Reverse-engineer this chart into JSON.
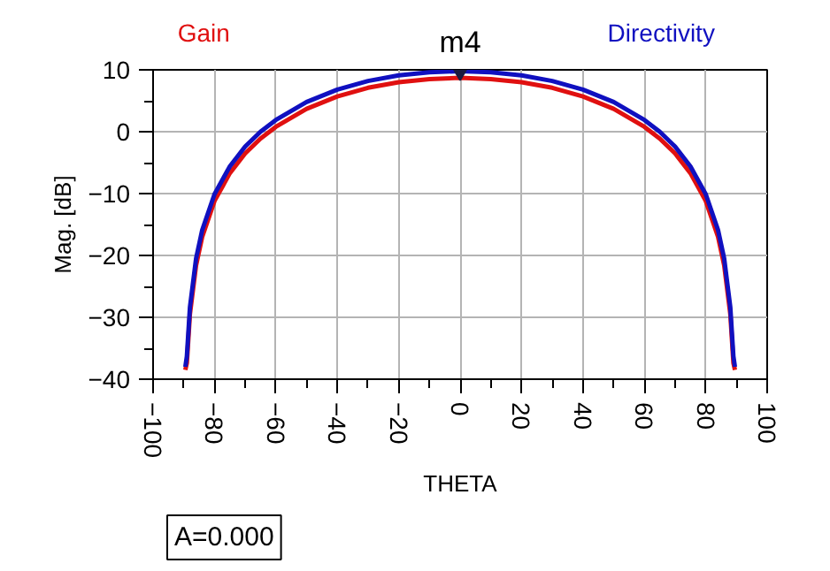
{
  "chart_data": {
    "type": "line",
    "xlabel": "THETA",
    "ylabel": "Mag. [dB]",
    "x": [
      -89.5,
      -89,
      -88,
      -86,
      -84,
      -80,
      -75,
      -70,
      -65,
      -60,
      -50,
      -40,
      -30,
      -20,
      -10,
      0,
      10,
      20,
      30,
      40,
      50,
      60,
      65,
      70,
      75,
      80,
      84,
      86,
      88,
      89,
      89.5
    ],
    "series": [
      {
        "name": "Gain",
        "color": "#e01010",
        "values": [
          -38.5,
          -37.4,
          -29.5,
          -21.6,
          -17.0,
          -11.2,
          -6.7,
          -3.5,
          -1.1,
          0.8,
          3.7,
          5.7,
          7.1,
          8.0,
          8.5,
          8.7,
          8.5,
          8.0,
          7.1,
          5.7,
          3.7,
          0.8,
          -1.1,
          -3.5,
          -6.7,
          -11.2,
          -17.0,
          -21.6,
          -29.5,
          -37.4,
          -38.5
        ]
      },
      {
        "name": "Directivity",
        "color": "#1010c0",
        "values": [
          -38.0,
          -36.3,
          -28.4,
          -20.5,
          -15.9,
          -10.1,
          -5.6,
          -2.4,
          0.0,
          1.9,
          4.8,
          6.8,
          8.2,
          9.1,
          9.6,
          9.8,
          9.6,
          9.1,
          8.2,
          6.8,
          4.8,
          1.9,
          0.0,
          -2.4,
          -5.6,
          -10.1,
          -15.9,
          -20.5,
          -28.4,
          -36.3,
          -38.0
        ]
      }
    ],
    "xlim": [
      -100,
      100
    ],
    "xticks": [
      -100,
      -80,
      -60,
      -40,
      -20,
      0,
      20,
      40,
      60,
      80,
      100
    ],
    "ylim": [
      -40,
      10
    ],
    "yticks": [
      -40,
      -30,
      -20,
      -10,
      0,
      10
    ],
    "annotations": [
      {
        "text": "m4",
        "x": 0,
        "y": 9.8
      },
      "A=0.000"
    ],
    "grid": true,
    "marker": "none",
    "line_style": "solid"
  }
}
